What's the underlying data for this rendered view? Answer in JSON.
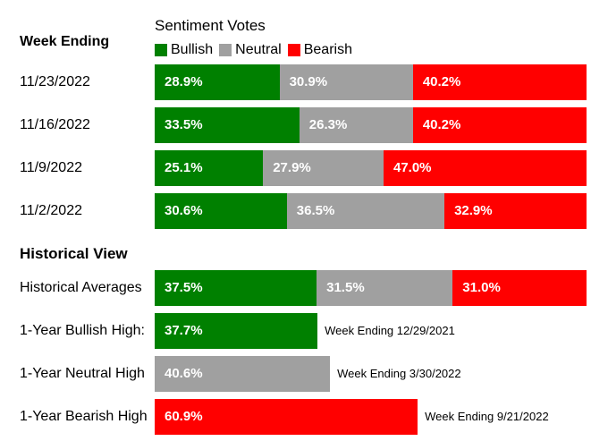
{
  "colors": {
    "bullish": "#008000",
    "neutral": "#a0a0a0",
    "bearish": "#ff0000"
  },
  "chart_data": {
    "type": "bar",
    "stacked": true,
    "orientation": "horizontal",
    "title": "Sentiment Votes",
    "legend": [
      "Bullish",
      "Neutral",
      "Bearish"
    ],
    "sections": [
      {
        "heading": "Week Ending",
        "rows": [
          {
            "label": "11/23/2022",
            "values": [
              28.9,
              30.9,
              40.2
            ],
            "labels": [
              "28.9%",
              "30.9%",
              "40.2%"
            ]
          },
          {
            "label": "11/16/2022",
            "values": [
              33.5,
              26.3,
              40.2
            ],
            "labels": [
              "33.5%",
              "26.3%",
              "40.2%"
            ]
          },
          {
            "label": "11/9/2022",
            "values": [
              25.1,
              27.9,
              47.0
            ],
            "labels": [
              "25.1%",
              "27.9%",
              "47.0%"
            ]
          },
          {
            "label": "11/2/2022",
            "values": [
              30.6,
              36.5,
              32.9
            ],
            "labels": [
              "30.6%",
              "36.5%",
              "32.9%"
            ]
          }
        ]
      },
      {
        "heading": "Historical View",
        "rows": [
          {
            "label": "Historical Averages",
            "values": [
              37.5,
              31.5,
              31.0
            ],
            "labels": [
              "37.5%",
              "31.5%",
              "31.0%"
            ]
          },
          {
            "label": "1-Year Bullish High:",
            "values": [
              37.7,
              null,
              null
            ],
            "labels": [
              "37.7%",
              "",
              ""
            ],
            "note": "Week Ending 12/29/2021"
          },
          {
            "label": "1-Year Neutral High",
            "values": [
              null,
              40.6,
              null
            ],
            "labels": [
              "",
              "40.6%",
              ""
            ],
            "note": "Week Ending 3/30/2022"
          },
          {
            "label": "1-Year Bearish High",
            "values": [
              null,
              null,
              60.9
            ],
            "labels": [
              "",
              "",
              "60.9%"
            ],
            "note": "Week Ending 9/21/2022"
          }
        ]
      }
    ]
  }
}
